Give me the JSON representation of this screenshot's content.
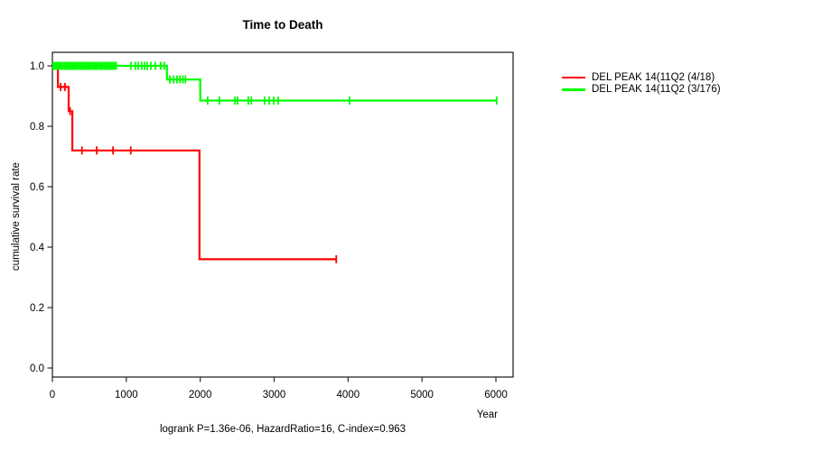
{
  "chart_data": {
    "type": "line",
    "subtype": "kaplan-meier-step",
    "title": "Time to Death",
    "xlabel": "Year",
    "ylabel": "cumulative survival rate",
    "footer": "logrank P=1.36e-06, HazardRatio=16, C-index=0.963",
    "xlim": [
      0,
      6000
    ],
    "ylim": [
      0.0,
      1.0
    ],
    "grid": false,
    "legend_position": "right-outside",
    "xtick_values": [
      0,
      1000,
      2000,
      3000,
      4000,
      5000,
      6000
    ],
    "xtick_labels": [
      "0",
      "1000",
      "2000",
      "3000",
      "4000",
      "5000",
      "6000"
    ],
    "ytick_values": [
      0.0,
      0.2,
      0.4,
      0.6,
      0.8,
      1.0
    ],
    "ytick_labels": [
      "0.0",
      "0.2",
      "0.4",
      "0.6",
      "0.8",
      "1.0"
    ],
    "series": [
      {
        "name": "DEL PEAK 14(11Q2 (4/18)",
        "color": "#ff0000",
        "steps": [
          [
            0,
            1.0
          ],
          [
            75,
            1.0
          ],
          [
            75,
            0.93
          ],
          [
            220,
            0.93
          ],
          [
            220,
            0.85
          ],
          [
            270,
            0.85
          ],
          [
            270,
            0.72
          ],
          [
            1990,
            0.72
          ],
          [
            1990,
            0.36
          ],
          [
            3840,
            0.36
          ]
        ],
        "censor_marks": [
          [
            110,
            0.93
          ],
          [
            170,
            0.93
          ],
          [
            240,
            0.85
          ],
          [
            400,
            0.72
          ],
          [
            600,
            0.72
          ],
          [
            820,
            0.72
          ],
          [
            1060,
            0.72
          ],
          [
            3840,
            0.36
          ]
        ]
      },
      {
        "name": "DEL PEAK 14(11Q2 (3/176)",
        "color": "#00ff00",
        "steps": [
          [
            0,
            1.0
          ],
          [
            1550,
            1.0
          ],
          [
            1550,
            0.955
          ],
          [
            2000,
            0.955
          ],
          [
            2000,
            0.885
          ],
          [
            6010,
            0.885
          ]
        ],
        "censor_marks": [
          [
            10,
            1.0
          ],
          [
            22,
            1.0
          ],
          [
            34,
            1.0
          ],
          [
            46,
            1.0
          ],
          [
            60,
            1.0
          ],
          [
            80,
            1.0
          ],
          [
            100,
            1.0
          ],
          [
            122,
            1.0
          ],
          [
            145,
            1.0
          ],
          [
            168,
            1.0
          ],
          [
            190,
            1.0
          ],
          [
            212,
            1.0
          ],
          [
            234,
            1.0
          ],
          [
            256,
            1.0
          ],
          [
            278,
            1.0
          ],
          [
            300,
            1.0
          ],
          [
            322,
            1.0
          ],
          [
            345,
            1.0
          ],
          [
            368,
            1.0
          ],
          [
            390,
            1.0
          ],
          [
            412,
            1.0
          ],
          [
            435,
            1.0
          ],
          [
            458,
            1.0
          ],
          [
            480,
            1.0
          ],
          [
            502,
            1.0
          ],
          [
            525,
            1.0
          ],
          [
            548,
            1.0
          ],
          [
            570,
            1.0
          ],
          [
            592,
            1.0
          ],
          [
            615,
            1.0
          ],
          [
            638,
            1.0
          ],
          [
            660,
            1.0
          ],
          [
            682,
            1.0
          ],
          [
            705,
            1.0
          ],
          [
            728,
            1.0
          ],
          [
            750,
            1.0
          ],
          [
            772,
            1.0
          ],
          [
            795,
            1.0
          ],
          [
            818,
            1.0
          ],
          [
            840,
            1.0
          ],
          [
            862,
            1.0
          ],
          [
            1063,
            1.0
          ],
          [
            1124,
            1.0
          ],
          [
            1161,
            1.0
          ],
          [
            1210,
            1.0
          ],
          [
            1247,
            1.0
          ],
          [
            1283,
            1.0
          ],
          [
            1332,
            1.0
          ],
          [
            1393,
            1.0
          ],
          [
            1466,
            1.0
          ],
          [
            1515,
            1.0
          ],
          [
            1590,
            0.955
          ],
          [
            1640,
            0.955
          ],
          [
            1685,
            0.955
          ],
          [
            1725,
            0.955
          ],
          [
            1765,
            0.955
          ],
          [
            1800,
            0.955
          ],
          [
            2100,
            0.885
          ],
          [
            2260,
            0.885
          ],
          [
            2470,
            0.885
          ],
          [
            2505,
            0.885
          ],
          [
            2650,
            0.885
          ],
          [
            2690,
            0.885
          ],
          [
            2870,
            0.885
          ],
          [
            2933,
            0.885
          ],
          [
            2994,
            0.885
          ],
          [
            3055,
            0.885
          ],
          [
            4020,
            0.885
          ],
          [
            6010,
            0.885
          ]
        ]
      }
    ]
  }
}
